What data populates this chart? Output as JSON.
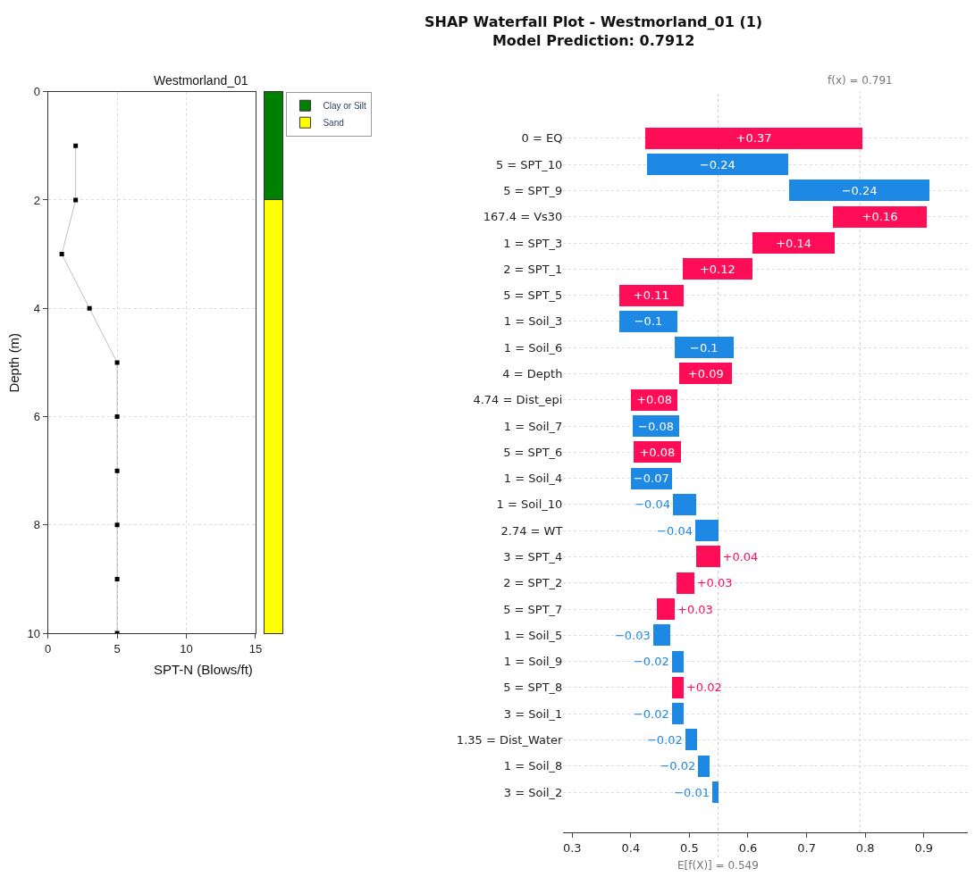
{
  "chart_data": [
    {
      "type": "line",
      "title": "Westmorland_01",
      "xlabel": "SPT-N (Blows/ft)",
      "ylabel": "Depth (m)",
      "xlim": [
        0,
        15
      ],
      "xticks": [
        0,
        5,
        10,
        15
      ],
      "ylim": [
        10,
        0
      ],
      "yticks": [
        0,
        2,
        4,
        6,
        8,
        10
      ],
      "grid": true,
      "marker": "square",
      "line_style": "solid",
      "series": [
        {
          "color": "#000000",
          "x": [
            2,
            2,
            1,
            3,
            5,
            5,
            5,
            5,
            5,
            5
          ],
          "values": [
            1,
            2,
            3,
            4,
            5,
            6,
            7,
            8,
            9,
            10
          ]
        }
      ]
    },
    {
      "type": "bar",
      "stacked": true,
      "categories": [
        null
      ],
      "ylim": [
        10,
        0
      ],
      "tick_labels": false,
      "legend": "top right",
      "series": [
        {
          "name": "Clay or Silt",
          "color": "#008000",
          "values": [
            2
          ]
        },
        {
          "name": "Sand",
          "color": "#ffff00",
          "values": [
            8
          ]
        }
      ]
    },
    {
      "type": "bar",
      "orientation": "horizontal",
      "title": "SHAP Waterfall Plot - Westmorland_01 (1)",
      "subtitle": "Model Prediction: 0.7912",
      "categories": [
        "0 = EQ",
        "5 = SPT_10",
        "5 = SPT_9",
        "167.4 = Vs30",
        "1 = SPT_3",
        "2 = SPT_1",
        "5 = SPT_5",
        "1 = Soil_3",
        "1 = Soil_6",
        "4 = Depth",
        "4.74 = Dist_epi",
        "1 = Soil_7",
        "5 = SPT_6",
        "1 = Soil_4",
        "1 = Soil_10",
        "2.74 = WT",
        "3 = SPT_4",
        "2 = SPT_2",
        "5 = SPT_7",
        "1 = Soil_5",
        "1 = Soil_9",
        "5 = SPT_8",
        "3 = Soil_1",
        "1.35 = Dist_Water",
        "1 = Soil_8",
        "3 = Soil_2"
      ],
      "values": [
        0.37,
        -0.24,
        -0.24,
        0.16,
        0.14,
        0.12,
        0.11,
        -0.1,
        -0.1,
        0.09,
        0.08,
        -0.08,
        0.08,
        -0.07,
        -0.04,
        -0.04,
        0.04,
        0.03,
        0.03,
        -0.03,
        -0.02,
        0.02,
        -0.02,
        -0.02,
        -0.02,
        -0.01
      ],
      "base": [
        0.425,
        0.668,
        0.91,
        0.745,
        0.608,
        0.488,
        0.38,
        0.48,
        0.575,
        0.483,
        0.4,
        0.483,
        0.405,
        0.47,
        0.512,
        0.55,
        0.512,
        0.478,
        0.445,
        0.468,
        0.49,
        0.47,
        0.49,
        0.513,
        0.535,
        0.549
      ],
      "colors": [
        "#ff0d57",
        "#1e88e5",
        "#1e88e5",
        "#ff0d57",
        "#ff0d57",
        "#ff0d57",
        "#ff0d57",
        "#1e88e5",
        "#1e88e5",
        "#ff0d57",
        "#ff0d57",
        "#1e88e5",
        "#ff0d57",
        "#1e88e5",
        "#1e88e5",
        "#1e88e5",
        "#ff0d57",
        "#ff0d57",
        "#ff0d57",
        "#1e88e5",
        "#1e88e5",
        "#ff0d57",
        "#1e88e5",
        "#1e88e5",
        "#1e88e5",
        "#1e88e5"
      ],
      "value_labels": [
        "+0.37",
        "−0.24",
        "−0.24",
        "+0.16",
        "+0.14",
        "+0.12",
        "+0.11",
        "−0.1",
        "−0.1",
        "+0.09",
        "+0.08",
        "−0.08",
        "+0.08",
        "−0.07",
        "−0.04",
        "−0.04",
        "+0.04",
        "+0.03",
        "+0.03",
        "−0.03",
        "−0.02",
        "+0.02",
        "−0.02",
        "−0.02",
        "−0.02",
        "−0.01"
      ],
      "xlim": [
        0.285,
        0.975
      ],
      "xticks": [
        0.3,
        0.4,
        0.5,
        0.6,
        0.7,
        0.8,
        0.9
      ],
      "grid": "y",
      "ref_lines": [
        {
          "axis": "x",
          "value": 0.791,
          "label": "f(x) = 0.791",
          "color": "#cccccc",
          "line_style": "dotted"
        },
        {
          "axis": "x",
          "value": 0.549,
          "label": "E[f(X)] = 0.549",
          "color": "#cccccc",
          "line_style": "dotted"
        }
      ]
    }
  ]
}
